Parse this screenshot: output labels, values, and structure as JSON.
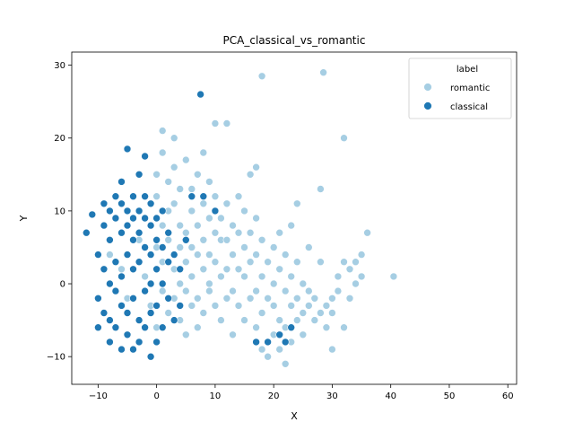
{
  "chart_data": {
    "type": "scatter",
    "title": "PCA_classical_vs_romantic",
    "xlabel": "X",
    "ylabel": "Y",
    "xlim": [
      -14.5,
      61.5
    ],
    "ylim": [
      -13.8,
      31.8
    ],
    "xticks": [
      -10,
      0,
      10,
      20,
      30,
      40,
      50,
      60
    ],
    "yticks": [
      -10,
      0,
      10,
      20,
      30
    ],
    "grid": false,
    "legend": {
      "title": "label",
      "placement": "top-right"
    },
    "series": [
      {
        "name": "romantic",
        "color": "#a6cee3",
        "points": [
          [
            -8,
            4
          ],
          [
            -6,
            2
          ],
          [
            -5,
            -2
          ],
          [
            -3,
            6
          ],
          [
            -2,
            1
          ],
          [
            -1,
            -3
          ],
          [
            0,
            5
          ],
          [
            0,
            -6
          ],
          [
            0,
            12
          ],
          [
            0,
            15
          ],
          [
            1,
            8
          ],
          [
            1,
            -1
          ],
          [
            1,
            3
          ],
          [
            1,
            18
          ],
          [
            1,
            21
          ],
          [
            2,
            -4
          ],
          [
            2,
            10
          ],
          [
            2,
            6
          ],
          [
            2,
            14
          ],
          [
            3,
            2
          ],
          [
            3,
            -2
          ],
          [
            3,
            11
          ],
          [
            3,
            16
          ],
          [
            3,
            20
          ],
          [
            4,
            5
          ],
          [
            4,
            -5
          ],
          [
            4,
            0
          ],
          [
            4,
            8
          ],
          [
            4,
            13
          ],
          [
            5,
            3
          ],
          [
            5,
            -1
          ],
          [
            5,
            7
          ],
          [
            5,
            17
          ],
          [
            5,
            -7
          ],
          [
            6,
            1
          ],
          [
            6,
            5
          ],
          [
            6,
            -3
          ],
          [
            6,
            10
          ],
          [
            6,
            13
          ],
          [
            7,
            -2
          ],
          [
            7,
            4
          ],
          [
            7,
            8
          ],
          [
            7,
            15
          ],
          [
            7,
            -6
          ],
          [
            8,
            2
          ],
          [
            8,
            6
          ],
          [
            8,
            -4
          ],
          [
            8,
            11
          ],
          [
            8,
            18
          ],
          [
            9,
            0
          ],
          [
            9,
            4
          ],
          [
            9,
            -1
          ],
          [
            9,
            9
          ],
          [
            9,
            14
          ],
          [
            10,
            3
          ],
          [
            10,
            7
          ],
          [
            10,
            -3
          ],
          [
            10,
            12
          ],
          [
            10,
            22
          ],
          [
            11,
            1
          ],
          [
            11,
            -5
          ],
          [
            11,
            9
          ],
          [
            11,
            6
          ],
          [
            12,
            2
          ],
          [
            12,
            -2
          ],
          [
            12,
            6
          ],
          [
            12,
            11
          ],
          [
            12,
            22
          ],
          [
            13,
            4
          ],
          [
            13,
            -1
          ],
          [
            13,
            8
          ],
          [
            13,
            -7
          ],
          [
            14,
            2
          ],
          [
            14,
            -3
          ],
          [
            14,
            7
          ],
          [
            14,
            12
          ],
          [
            15,
            1
          ],
          [
            15,
            5
          ],
          [
            15,
            -5
          ],
          [
            15,
            10
          ],
          [
            16,
            3
          ],
          [
            16,
            -2
          ],
          [
            16,
            7
          ],
          [
            16,
            15
          ],
          [
            17,
            -1
          ],
          [
            17,
            4
          ],
          [
            17,
            -6
          ],
          [
            17,
            9
          ],
          [
            17,
            16
          ],
          [
            18,
            1
          ],
          [
            18,
            -4
          ],
          [
            18,
            6
          ],
          [
            18,
            -9
          ],
          [
            18,
            28.5
          ],
          [
            19,
            -2
          ],
          [
            19,
            3
          ],
          [
            19,
            -8
          ],
          [
            19,
            -10
          ],
          [
            20,
            0
          ],
          [
            20,
            5
          ],
          [
            20,
            -7
          ],
          [
            20,
            -3
          ],
          [
            21,
            2
          ],
          [
            21,
            -5
          ],
          [
            21,
            7
          ],
          [
            21,
            -9
          ],
          [
            22,
            -1
          ],
          [
            22,
            4
          ],
          [
            22,
            -6
          ],
          [
            22,
            -11
          ],
          [
            23,
            1
          ],
          [
            23,
            -3
          ],
          [
            23,
            8
          ],
          [
            23,
            -8
          ],
          [
            24,
            -2
          ],
          [
            24,
            3
          ],
          [
            24,
            -5
          ],
          [
            24,
            11
          ],
          [
            25,
            0
          ],
          [
            25,
            -4
          ],
          [
            25,
            -7
          ],
          [
            26,
            -1
          ],
          [
            26,
            -3
          ],
          [
            26,
            5
          ],
          [
            27,
            -2
          ],
          [
            27,
            -5
          ],
          [
            28,
            -4
          ],
          [
            28,
            3
          ],
          [
            28,
            13
          ],
          [
            28.5,
            29
          ],
          [
            29,
            -3
          ],
          [
            29,
            -6
          ],
          [
            30,
            -2
          ],
          [
            30,
            -9
          ],
          [
            30,
            -4
          ],
          [
            31,
            1
          ],
          [
            31,
            -1
          ],
          [
            32,
            20
          ],
          [
            32,
            3
          ],
          [
            32,
            -6
          ],
          [
            33,
            2
          ],
          [
            33,
            -2
          ],
          [
            34,
            0
          ],
          [
            34,
            3
          ],
          [
            35,
            1
          ],
          [
            35,
            4
          ],
          [
            36,
            7
          ],
          [
            40.5,
            1
          ]
        ]
      },
      {
        "name": "classical",
        "color": "#1f78b4",
        "points": [
          [
            -12,
            7
          ],
          [
            -11,
            9.5
          ],
          [
            -10,
            4
          ],
          [
            -10,
            -2
          ],
          [
            -10,
            -6
          ],
          [
            -9,
            8
          ],
          [
            -9,
            2
          ],
          [
            -9,
            -4
          ],
          [
            -9,
            11
          ],
          [
            -8,
            6
          ],
          [
            -8,
            0
          ],
          [
            -8,
            -5
          ],
          [
            -8,
            10
          ],
          [
            -8,
            -8
          ],
          [
            -7,
            9
          ],
          [
            -7,
            3
          ],
          [
            -7,
            -1
          ],
          [
            -7,
            -6
          ],
          [
            -7,
            12
          ],
          [
            -6,
            7
          ],
          [
            -6,
            1
          ],
          [
            -6,
            -3
          ],
          [
            -6,
            11
          ],
          [
            -6,
            -9
          ],
          [
            -6,
            14
          ],
          [
            -5,
            8
          ],
          [
            -5,
            4
          ],
          [
            -5,
            -4
          ],
          [
            -5,
            10
          ],
          [
            -5,
            -7
          ],
          [
            -5,
            18.5
          ],
          [
            -4,
            6
          ],
          [
            -4,
            2
          ],
          [
            -4,
            -2
          ],
          [
            -4,
            12
          ],
          [
            -4,
            -9
          ],
          [
            -4,
            9
          ],
          [
            -3,
            7
          ],
          [
            -3,
            3
          ],
          [
            -3,
            -5
          ],
          [
            -3,
            10
          ],
          [
            -3,
            -8
          ],
          [
            -3,
            15
          ],
          [
            -2,
            5
          ],
          [
            -2,
            -1
          ],
          [
            -2,
            -6
          ],
          [
            -2,
            9
          ],
          [
            -2,
            17.5
          ],
          [
            -2,
            12
          ],
          [
            -1,
            4
          ],
          [
            -1,
            0
          ],
          [
            -1,
            -4
          ],
          [
            -1,
            8
          ],
          [
            -1,
            -10
          ],
          [
            -1,
            11
          ],
          [
            0,
            6
          ],
          [
            0,
            2
          ],
          [
            0,
            -3
          ],
          [
            0,
            9
          ],
          [
            0,
            -8
          ],
          [
            1,
            5
          ],
          [
            1,
            0
          ],
          [
            1,
            -6
          ],
          [
            1,
            10
          ],
          [
            2,
            3
          ],
          [
            2,
            -2
          ],
          [
            2,
            7
          ],
          [
            3,
            4
          ],
          [
            3,
            -5
          ],
          [
            4,
            2
          ],
          [
            4,
            -3
          ],
          [
            5,
            6
          ],
          [
            6,
            12
          ],
          [
            7.5,
            26
          ],
          [
            8,
            12
          ],
          [
            10,
            10
          ],
          [
            17,
            -8
          ],
          [
            19,
            -8
          ],
          [
            21,
            -7
          ],
          [
            22,
            -8
          ],
          [
            23,
            -6
          ]
        ]
      }
    ]
  }
}
